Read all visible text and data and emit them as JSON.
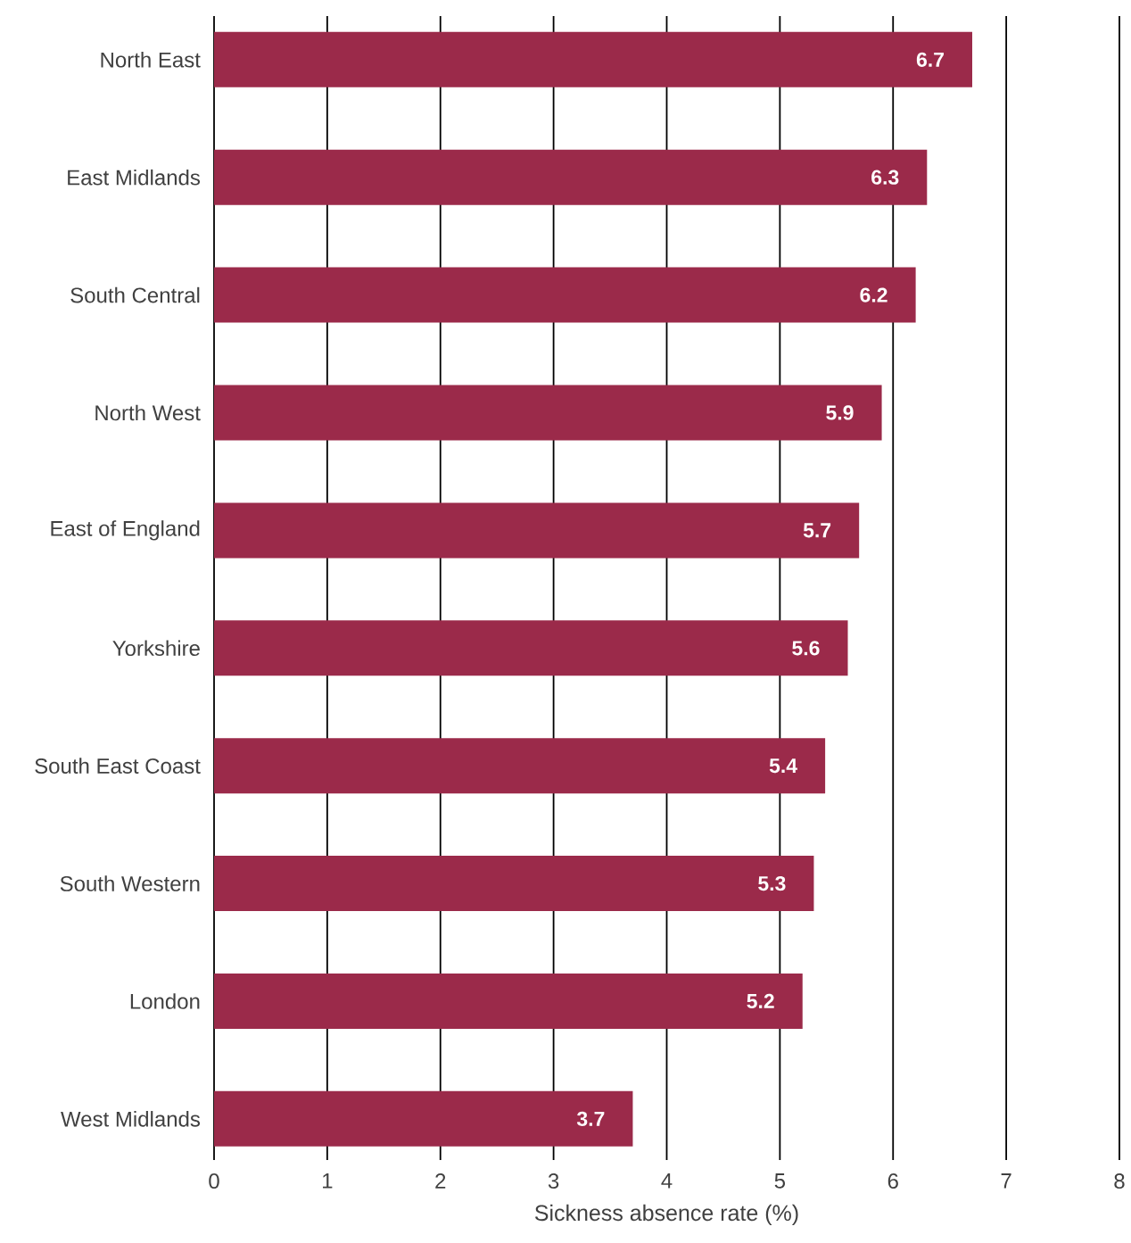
{
  "chart_data": {
    "type": "bar",
    "orientation": "horizontal",
    "xlabel": "Sickness absence rate (%)",
    "categories": [
      "North East",
      "East Midlands",
      "South Central",
      "North West",
      "East of England",
      "Yorkshire",
      "South East Coast",
      "South Western",
      "London",
      "West Midlands"
    ],
    "values": [
      6.7,
      6.3,
      6.2,
      5.9,
      5.7,
      5.6,
      5.4,
      5.3,
      5.2,
      3.7
    ],
    "color": "#9b2a4a",
    "data_labels": true,
    "grid": "x",
    "xlim": [
      0,
      8
    ],
    "xticks": [
      0,
      1,
      2,
      3,
      4,
      5,
      6,
      7,
      8
    ]
  }
}
